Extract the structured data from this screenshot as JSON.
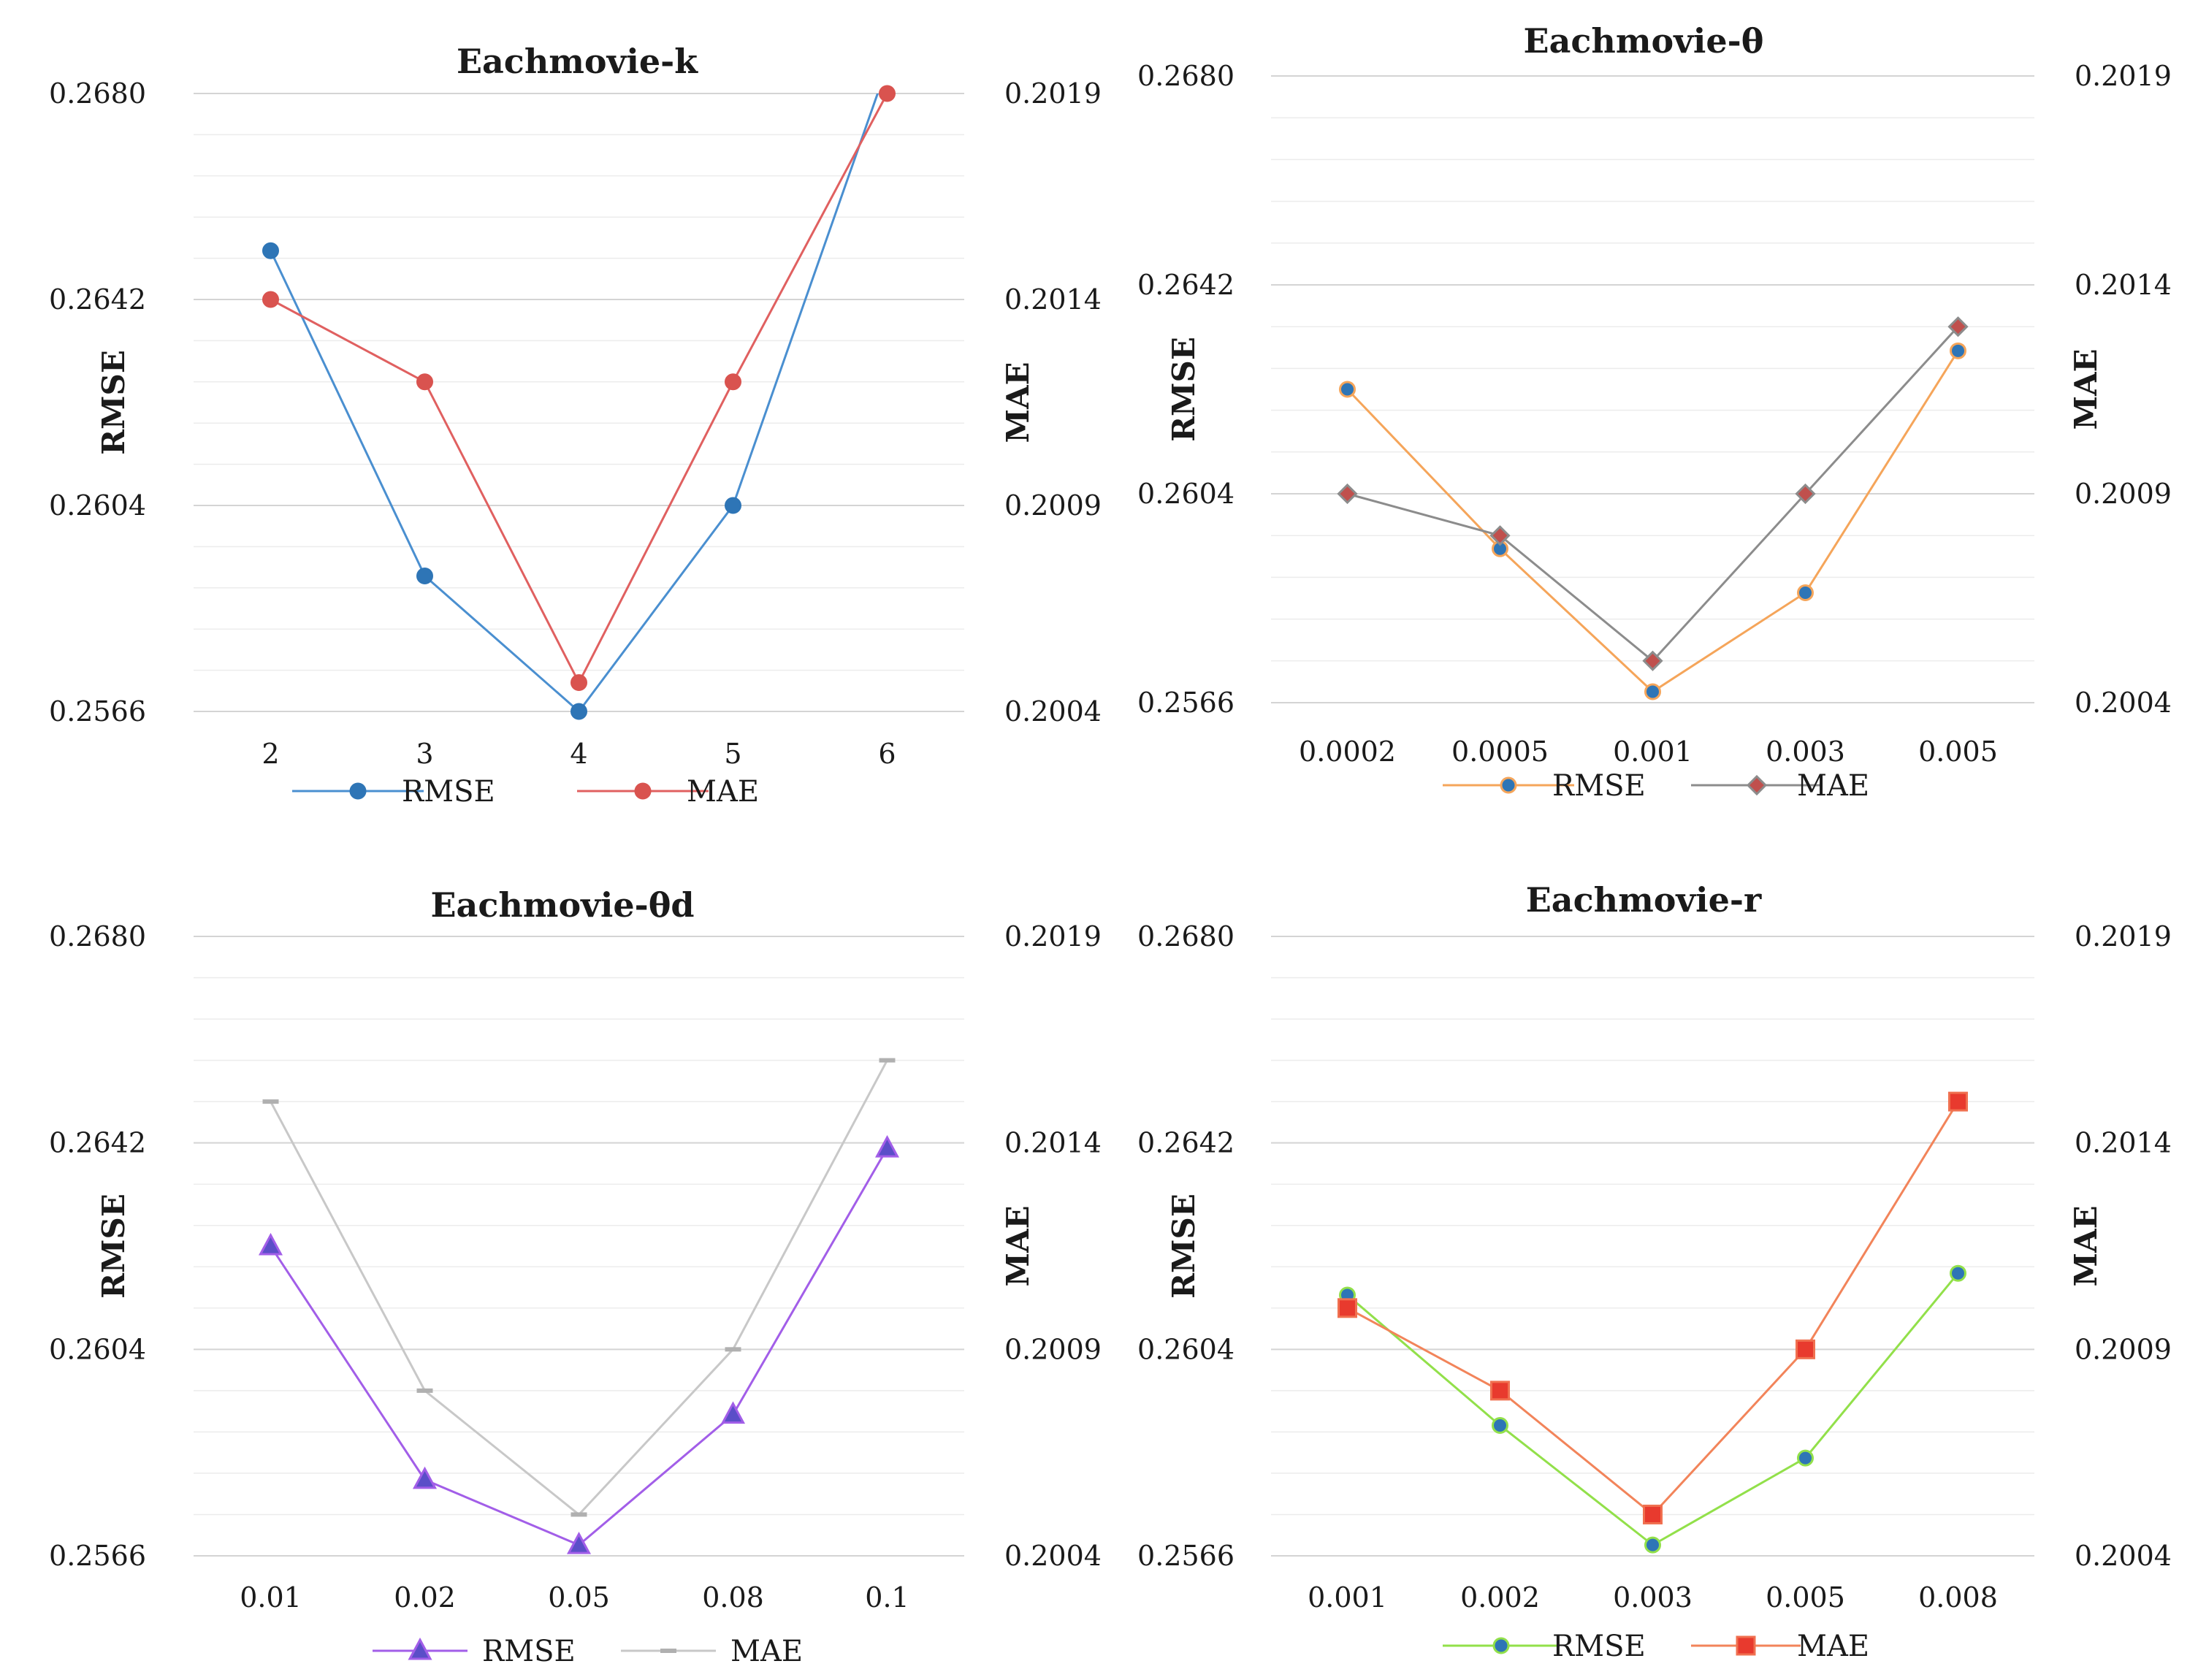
{
  "chart_data": [
    {
      "type": "line",
      "title": "Eachmovie-k",
      "categories": [
        "2",
        "3",
        "4",
        "5",
        "6"
      ],
      "ylabel": "RMSE",
      "y2label": "MAE",
      "y_ticks": [
        "0.2566",
        "0.2604",
        "0.2642",
        "0.2680"
      ],
      "y2_ticks": [
        "0.2004",
        "0.2009",
        "0.2014",
        "0.2019"
      ],
      "ylim": [
        0.2566,
        0.268
      ],
      "y2lim": [
        0.2004,
        0.2019
      ],
      "series": [
        {
          "name": "RMSE",
          "axis": "left",
          "color": "#4a8fd0",
          "marker": "circle",
          "marker_fill": "#2e75b6",
          "marker_stroke": "#2e75b6",
          "values": [
            0.2651,
            0.2591,
            0.2566,
            0.2604,
            0.2685
          ]
        },
        {
          "name": "MAE",
          "axis": "right",
          "color": "#e06060",
          "marker": "circle",
          "marker_fill": "#d9534f",
          "marker_stroke": "#d9534f",
          "values": [
            0.2014,
            0.2012,
            0.20047,
            0.2012,
            0.2019
          ]
        }
      ]
    },
    {
      "type": "line",
      "title": "Eachmovie-θ",
      "categories": [
        "0.0002",
        "0.0005",
        "0.001",
        "0.003",
        "0.005"
      ],
      "ylabel": "RMSE",
      "y2label": "MAE",
      "y_ticks": [
        "0.2566",
        "0.2604",
        "0.2642",
        "0.2680"
      ],
      "y2_ticks": [
        "0.2004",
        "0.2009",
        "0.2014",
        "0.2019"
      ],
      "ylim": [
        0.2566,
        0.268
      ],
      "y2lim": [
        0.2004,
        0.2019
      ],
      "series": [
        {
          "name": "RMSE",
          "axis": "left",
          "color": "#f5a55a",
          "marker": "circle",
          "marker_fill": "#2e75b6",
          "marker_stroke": "#f5a55a",
          "values": [
            0.2623,
            0.2594,
            0.2568,
            0.2586,
            0.263
          ]
        },
        {
          "name": "MAE",
          "axis": "right",
          "color": "#8c8c8c",
          "marker": "diamond",
          "marker_fill": "#c0504d",
          "marker_stroke": "#8c8c8c",
          "values": [
            0.2009,
            0.2008,
            0.2005,
            0.2009,
            0.2013
          ]
        }
      ]
    },
    {
      "type": "line",
      "title": "Eachmovie-θd",
      "categories": [
        "0.01",
        "0.02",
        "0.05",
        "0.08",
        "0.1"
      ],
      "ylabel": "RMSE",
      "y2label": "MAE",
      "y_ticks": [
        "0.2566",
        "0.2604",
        "0.2642",
        "0.2680"
      ],
      "y2_ticks": [
        "0.2004",
        "0.2009",
        "0.2014",
        "0.2019"
      ],
      "ylim": [
        0.2566,
        0.268
      ],
      "y2lim": [
        0.2004,
        0.2019
      ],
      "series": [
        {
          "name": "RMSE",
          "axis": "left",
          "color": "#a25ee8",
          "marker": "triangle",
          "marker_fill": "#5b4ec8",
          "marker_stroke": "#a25ee8",
          "values": [
            0.2623,
            0.258,
            0.2568,
            0.2592,
            0.2641
          ]
        },
        {
          "name": "MAE",
          "axis": "right",
          "color": "#c8c8c8",
          "marker": "dash",
          "marker_fill": "#b0b0b0",
          "marker_stroke": "#b0b0b0",
          "values": [
            0.2015,
            0.2008,
            0.2005,
            0.2009,
            0.2016
          ]
        }
      ]
    },
    {
      "type": "line",
      "title": "Eachmovie-r",
      "categories": [
        "0.001",
        "0.002",
        "0.003",
        "0.005",
        "0.008"
      ],
      "ylabel": "RMSE",
      "y2label": "MAE",
      "y_ticks": [
        "0.2566",
        "0.2604",
        "0.2642",
        "0.2680"
      ],
      "y2_ticks": [
        "0.2004",
        "0.2009",
        "0.2014",
        "0.2019"
      ],
      "ylim": [
        0.2566,
        0.268
      ],
      "y2lim": [
        0.2004,
        0.2019
      ],
      "series": [
        {
          "name": "RMSE",
          "axis": "left",
          "color": "#92e04a",
          "marker": "circle",
          "marker_fill": "#2e75b6",
          "marker_stroke": "#92e04a",
          "values": [
            0.2614,
            0.259,
            0.2568,
            0.2584,
            0.2618
          ]
        },
        {
          "name": "MAE",
          "axis": "right",
          "color": "#f2845a",
          "marker": "square",
          "marker_fill": "#e83a2e",
          "marker_stroke": "#f07050",
          "values": [
            0.201,
            0.2008,
            0.2005,
            0.2009,
            0.2015
          ]
        }
      ]
    }
  ]
}
